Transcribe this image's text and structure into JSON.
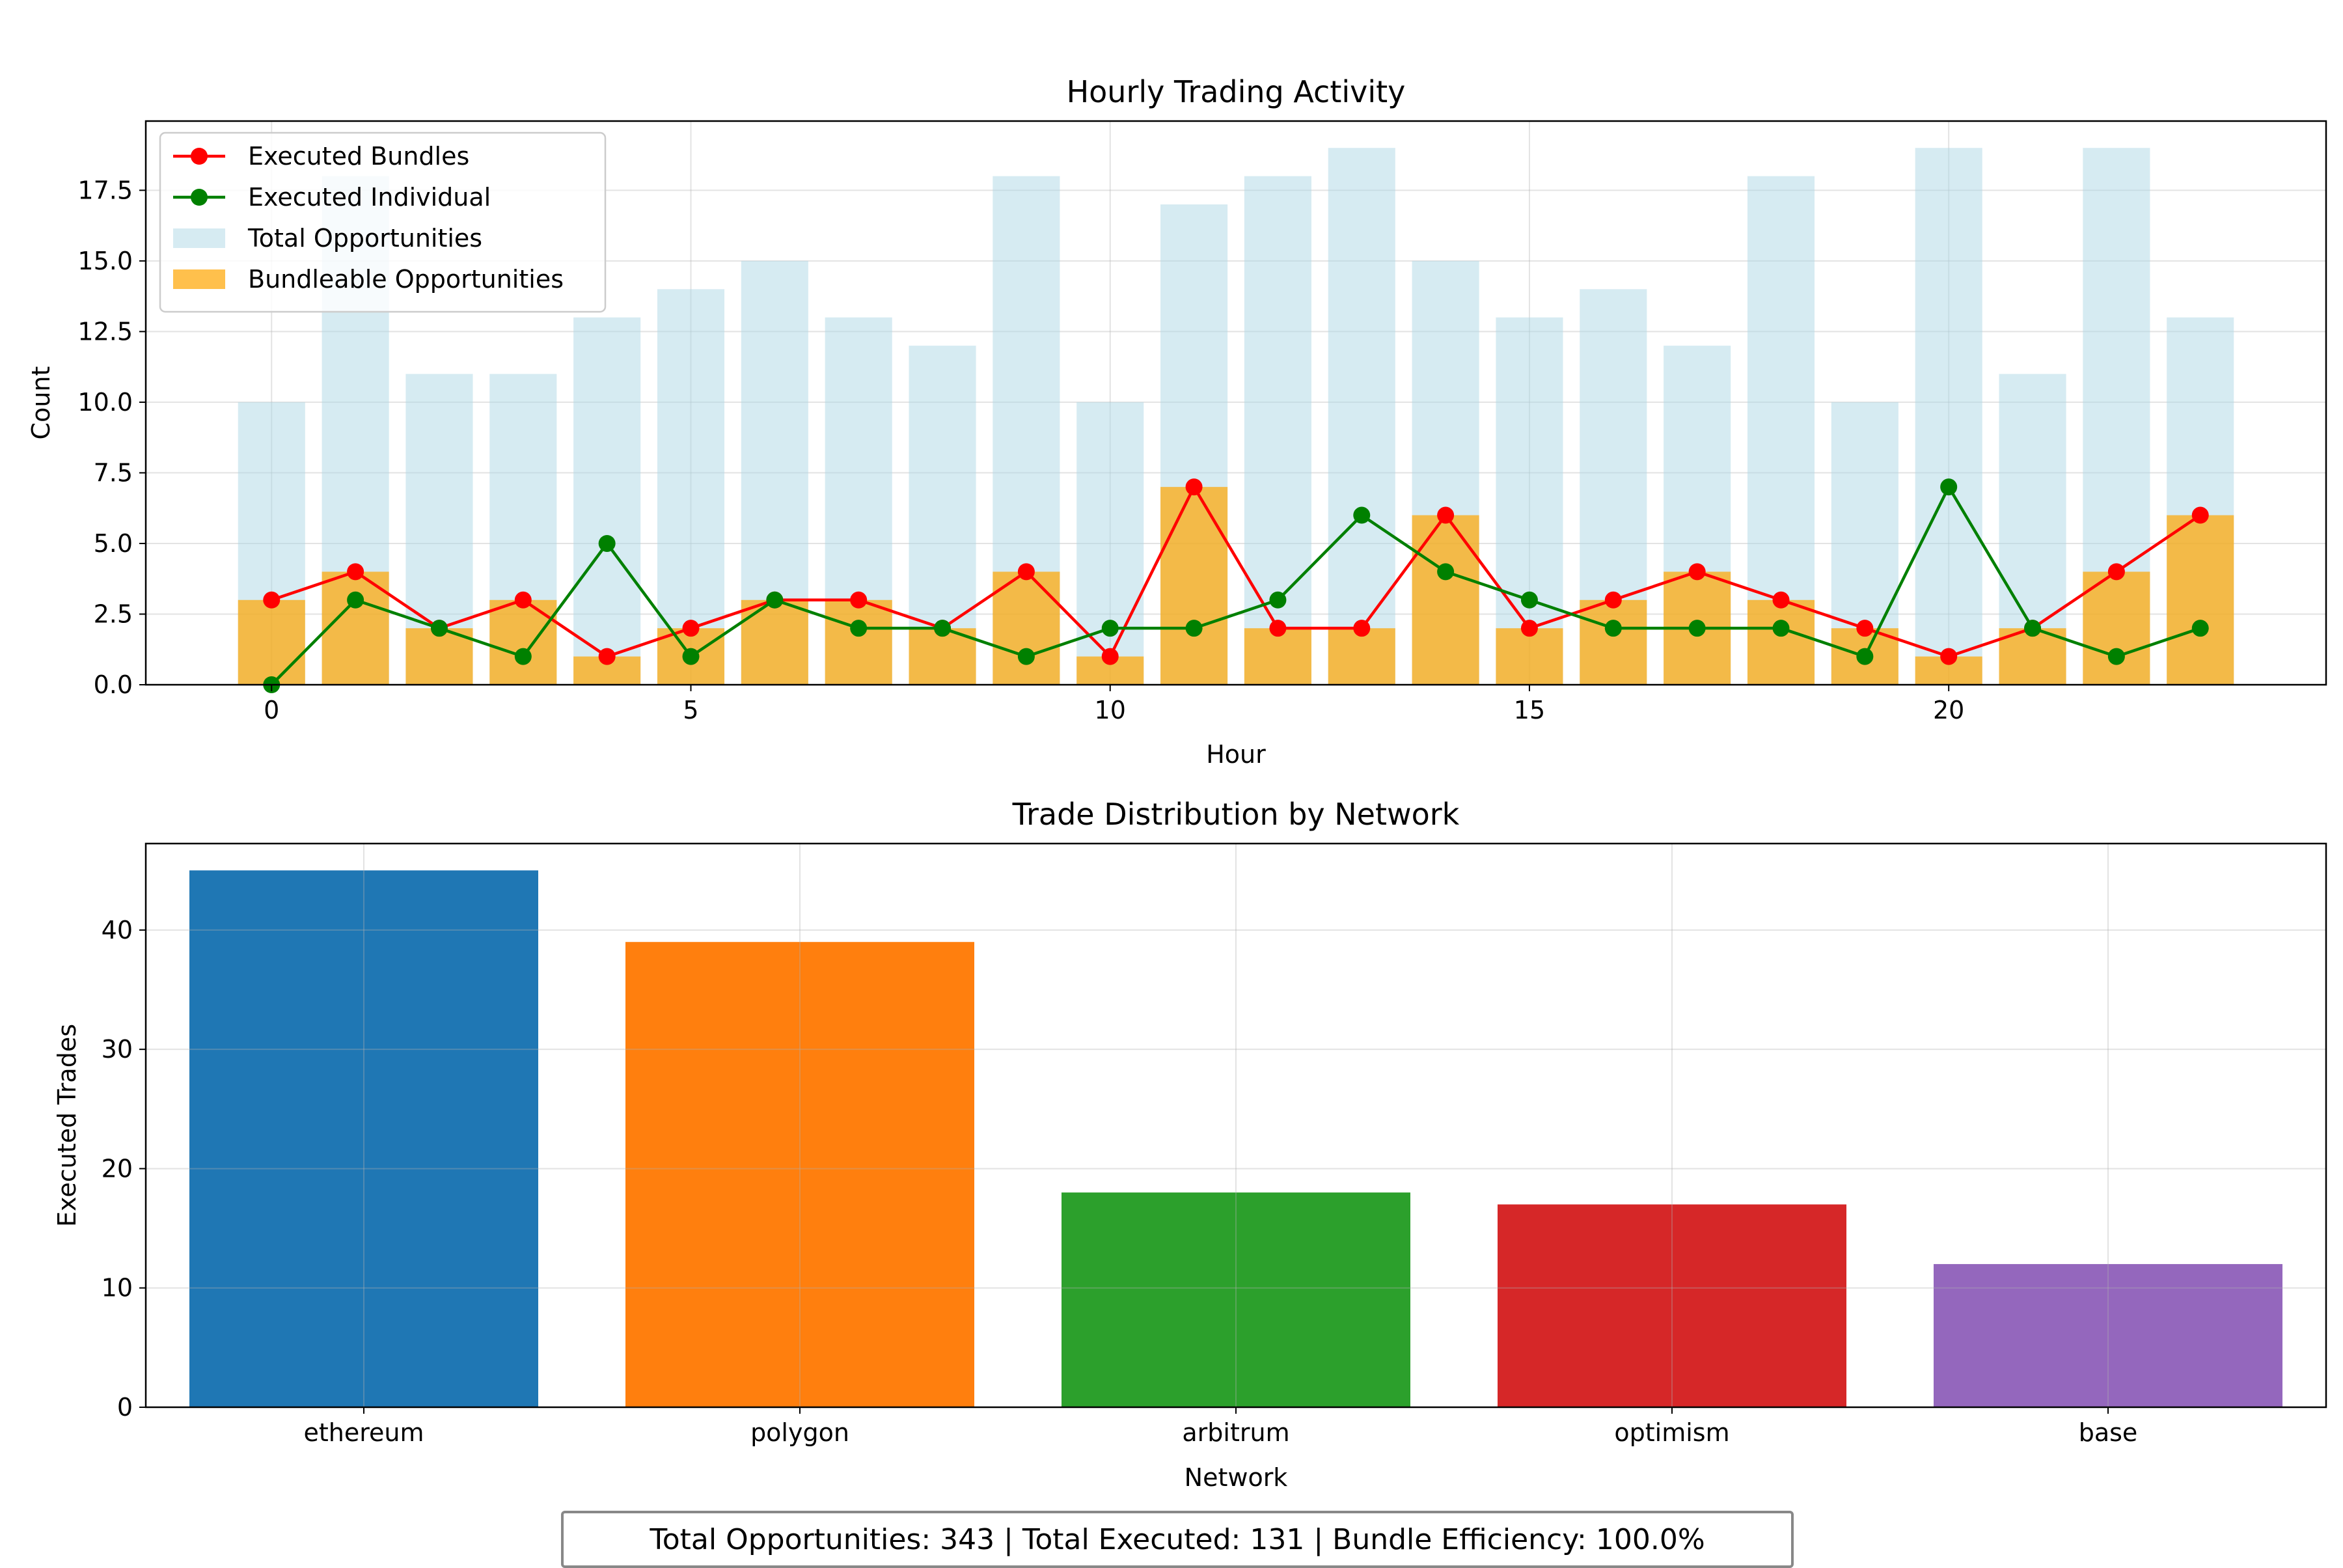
{
  "chart_data": [
    {
      "type": "bar",
      "title": "Hourly Trading Activity",
      "xlabel": "Hour",
      "ylabel": "Count",
      "xlim": [
        -1.5,
        24.5
      ],
      "ylim": [
        0,
        19.95
      ],
      "grid": true,
      "legend_position": "top-left",
      "x_ticks": [
        0,
        5,
        10,
        15,
        20
      ],
      "y_ticks": [
        "0.0",
        "2.5",
        "5.0",
        "7.5",
        "10.0",
        "12.5",
        "15.0",
        "17.5"
      ],
      "hours": [
        0,
        1,
        2,
        3,
        4,
        5,
        6,
        7,
        8,
        9,
        10,
        11,
        12,
        13,
        14,
        15,
        16,
        17,
        18,
        19,
        20,
        21,
        22,
        23
      ],
      "series": [
        {
          "name": "Executed Bundles",
          "kind": "line",
          "color": "#ff0000",
          "values": [
            3,
            4,
            2,
            3,
            1,
            2,
            3,
            3,
            2,
            4,
            1,
            7,
            2,
            2,
            6,
            2,
            3,
            4,
            3,
            2,
            1,
            2,
            4,
            6
          ]
        },
        {
          "name": "Executed Individual",
          "kind": "line",
          "color": "#008000",
          "values": [
            0,
            3,
            2,
            1,
            5,
            1,
            3,
            2,
            2,
            1,
            2,
            2,
            3,
            6,
            4,
            3,
            2,
            2,
            2,
            1,
            7,
            2,
            1,
            2
          ]
        },
        {
          "name": "Total Opportunities",
          "kind": "bar",
          "color": "#add8e6",
          "values": [
            10,
            18,
            11,
            11,
            13,
            14,
            15,
            13,
            12,
            18,
            10,
            17,
            18,
            19,
            15,
            13,
            14,
            12,
            18,
            10,
            19,
            11,
            19,
            13
          ]
        },
        {
          "name": "Bundleable Opportunities",
          "kind": "bar",
          "color": "#ffa500",
          "values": [
            3,
            4,
            2,
            3,
            1,
            2,
            3,
            3,
            2,
            4,
            1,
            7,
            2,
            2,
            6,
            2,
            3,
            4,
            3,
            2,
            1,
            2,
            4,
            6
          ]
        }
      ]
    },
    {
      "type": "bar",
      "title": "Trade Distribution by Network",
      "xlabel": "Network",
      "ylabel": "Executed Trades",
      "ylim": [
        0,
        47.25
      ],
      "y_ticks": [
        "0",
        "10",
        "20",
        "30",
        "40"
      ],
      "grid": true,
      "categories": [
        "ethereum",
        "polygon",
        "arbitrum",
        "optimism",
        "base"
      ],
      "values": [
        45,
        39,
        18,
        17,
        12
      ],
      "colors": [
        "#1f77b4",
        "#ff7f0e",
        "#2ca02c",
        "#d62728",
        "#9467bd"
      ]
    }
  ],
  "summary": "Total Opportunities: 343 | Total Executed: 131 | Bundle Efficiency: 100.0%"
}
